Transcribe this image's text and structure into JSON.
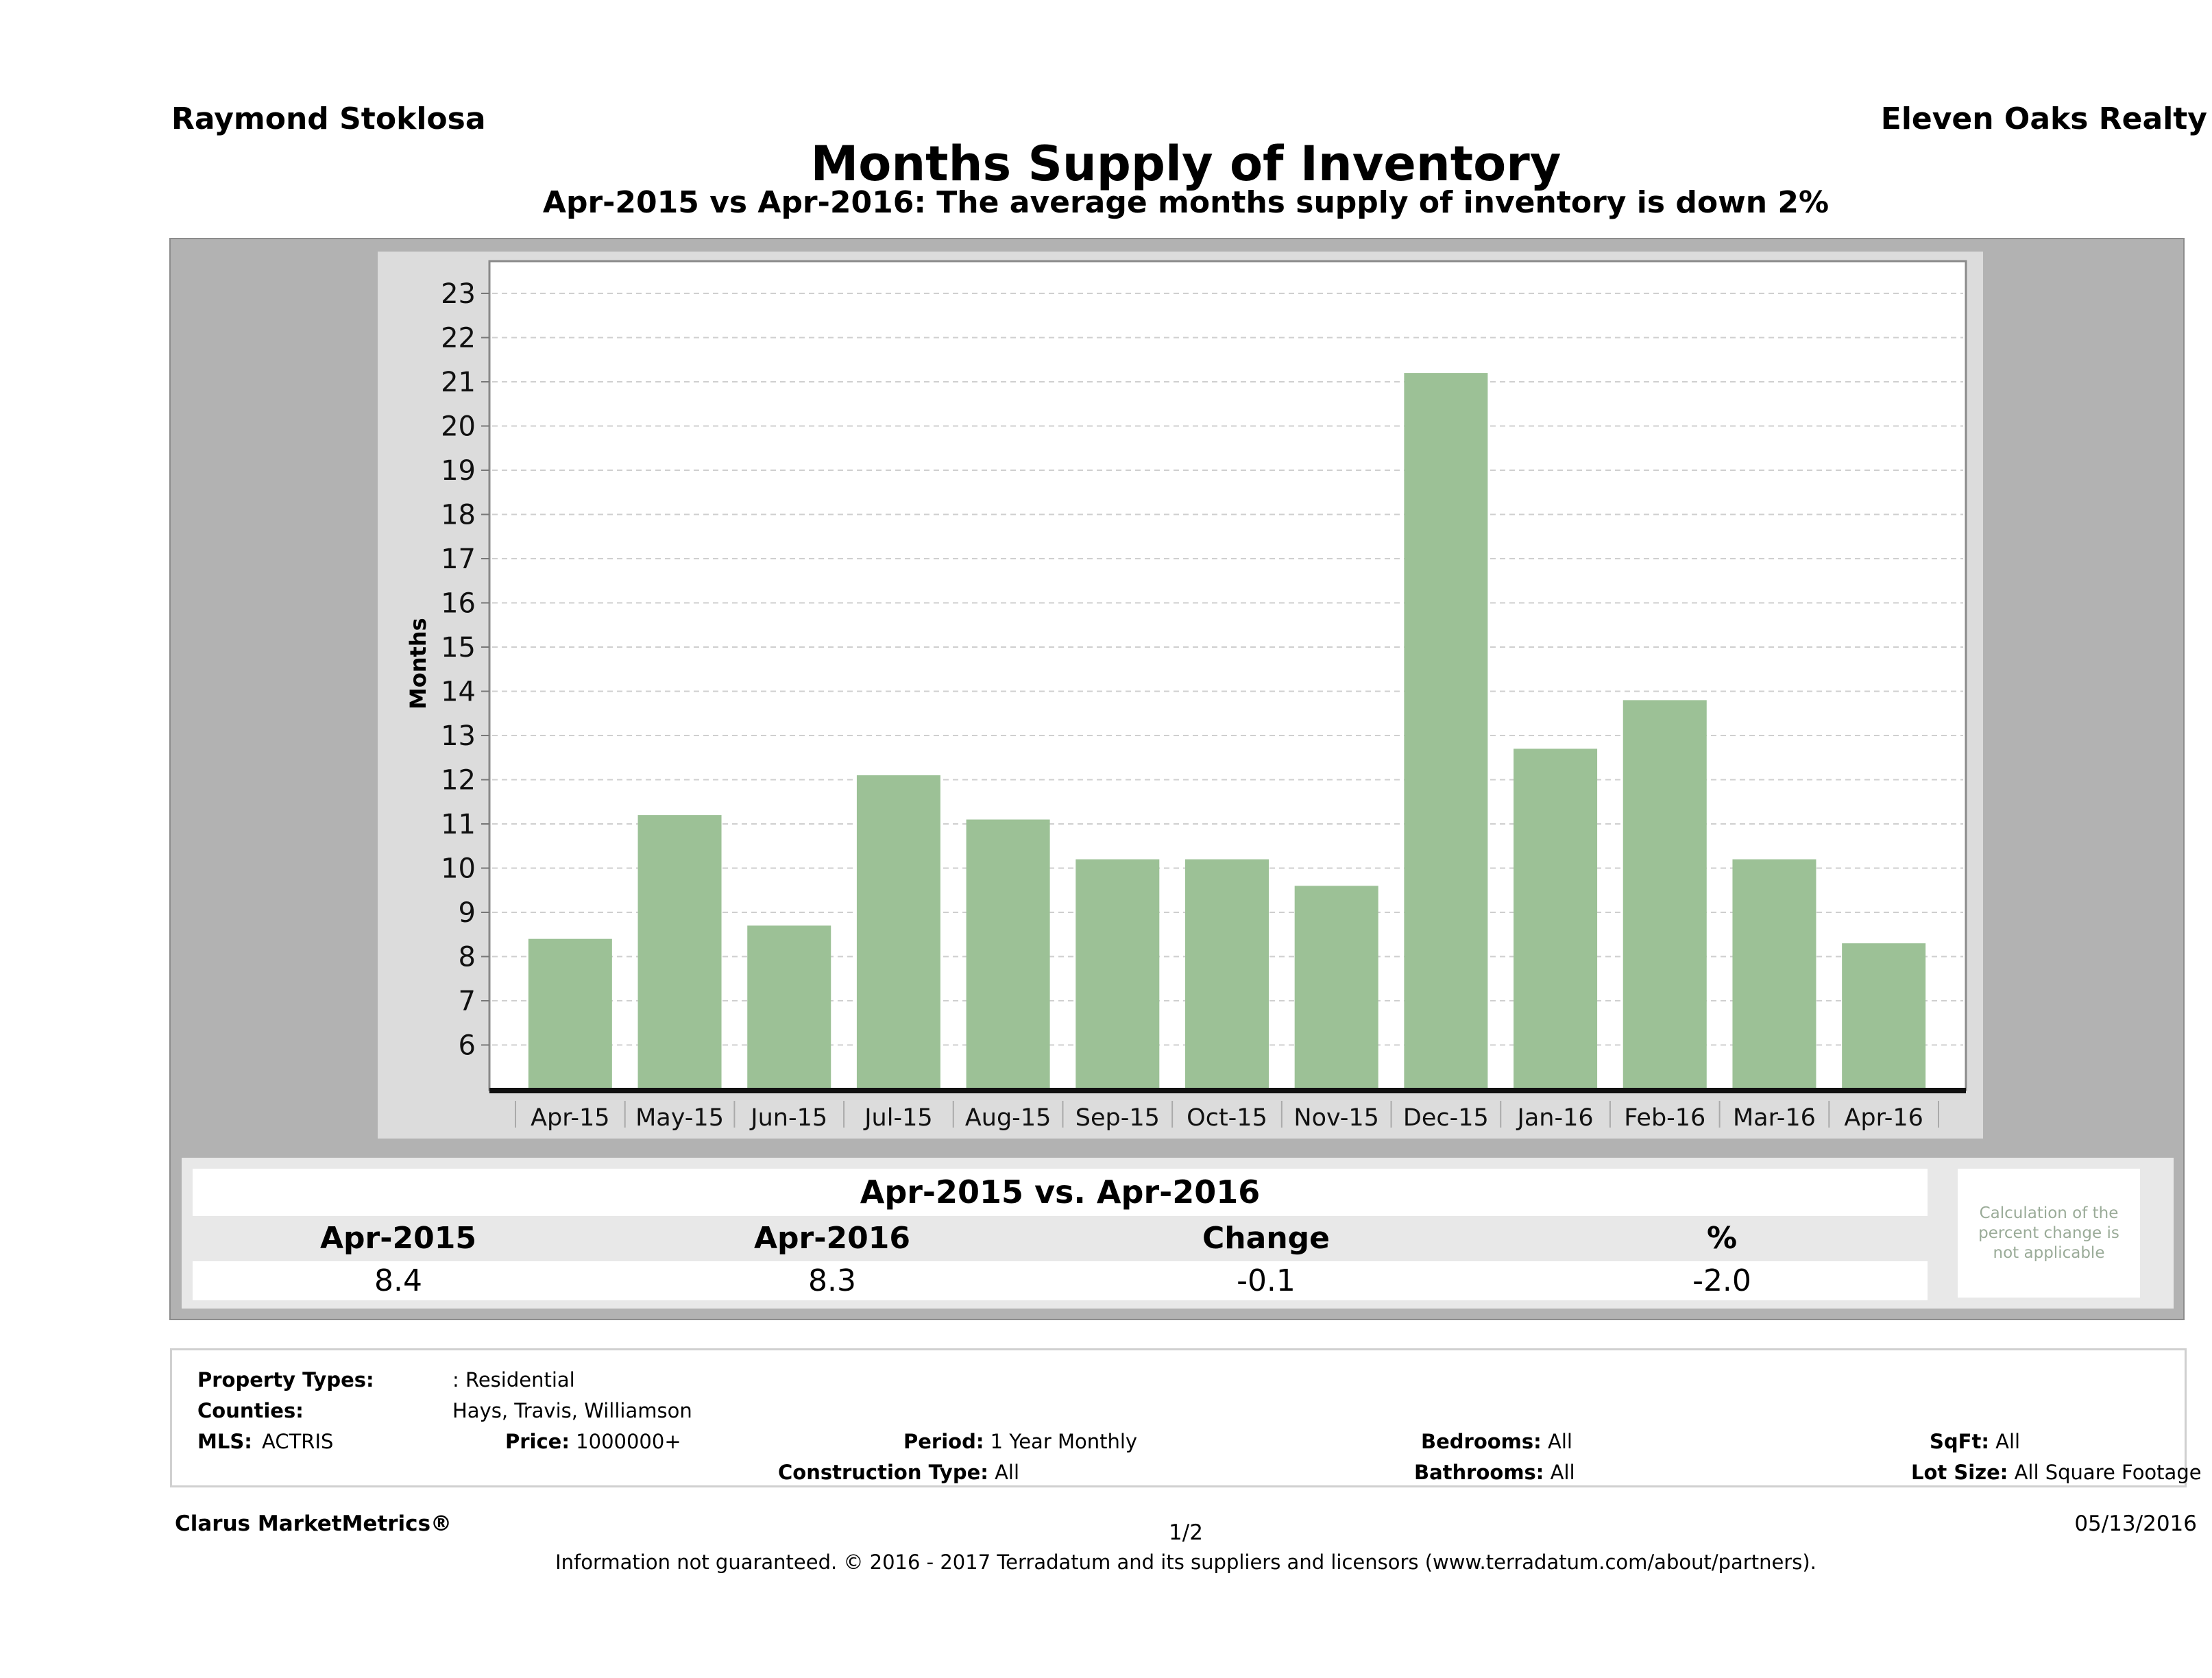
{
  "header": {
    "agent_name": "Raymond Stoklosa",
    "brokerage": "Eleven Oaks Realty",
    "title": "Months Supply of Inventory",
    "subtitle": "Apr-2015 vs Apr-2016: The average months supply of inventory is down 2%"
  },
  "chart_data": {
    "type": "bar",
    "title": "Months Supply of Inventory",
    "xlabel": "",
    "ylabel": "Months",
    "categories": [
      "Apr-15",
      "May-15",
      "Jun-15",
      "Jul-15",
      "Aug-15",
      "Sep-15",
      "Oct-15",
      "Nov-15",
      "Dec-15",
      "Jan-16",
      "Feb-16",
      "Mar-16",
      "Apr-16"
    ],
    "values": [
      8.4,
      11.2,
      8.7,
      12.1,
      11.1,
      10.2,
      10.2,
      9.6,
      21.2,
      12.7,
      13.8,
      10.2,
      8.3
    ],
    "ylim": [
      5,
      23.8
    ],
    "yticks": [
      6,
      7,
      8,
      9,
      10,
      11,
      12,
      13,
      14,
      15,
      16,
      17,
      18,
      19,
      20,
      21,
      22,
      23
    ],
    "grid": true,
    "bar_color": "#9cc196",
    "legend": "none"
  },
  "comparison": {
    "title": "Apr-2015 vs. Apr-2016",
    "headers": [
      "Apr-2015",
      "Apr-2016",
      "Change",
      "%"
    ],
    "values": [
      "8.4",
      "8.3",
      "-0.1",
      "-2.0"
    ],
    "note": "Calculation of the percent change is not applicable"
  },
  "filters": {
    "property_types_label": "Property Types:",
    "property_types_value": ": Residential",
    "counties_label": "Counties:",
    "counties_value": "Hays, Travis, Williamson",
    "mls_label": "MLS:",
    "mls_value": "ACTRIS",
    "price_label": "Price:",
    "price_value": "1000000+",
    "period_label": "Period:",
    "period_value": "1 Year Monthly",
    "construction_label": "Construction Type:",
    "construction_value": "All",
    "bedrooms_label": "Bedrooms:",
    "bedrooms_value": "All",
    "bathrooms_label": "Bathrooms:",
    "bathrooms_value": "All",
    "sqft_label": "SqFt:",
    "sqft_value": "All",
    "lot_size_label": "Lot Size:",
    "lot_size_value": "All Square Footage"
  },
  "footer": {
    "product": "Clarus MarketMetrics®",
    "page": "1/2",
    "date": "05/13/2016",
    "disclaimer": "Information not guaranteed. © 2016 - 2017 Terradatum and its suppliers and licensors (www.terradatum.com/about/partners)."
  }
}
